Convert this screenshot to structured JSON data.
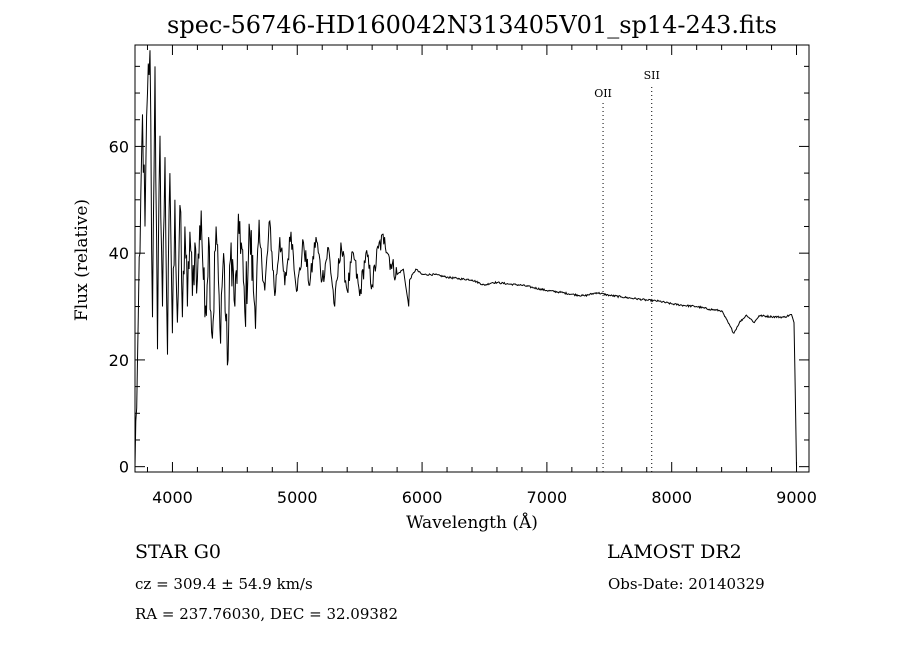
{
  "chart_data": {
    "type": "line",
    "title": "spec-56746-HD160042N313405V01_sp14-243.fits",
    "xlabel": "Wavelength (Å)",
    "ylabel": "Flux (relative)",
    "xlim": [
      3700,
      9100
    ],
    "ylim": [
      -1,
      79
    ],
    "xticks": [
      4000,
      5000,
      6000,
      7000,
      8000,
      9000
    ],
    "yticks": [
      0,
      20,
      40,
      60
    ],
    "grid": false,
    "series": [
      {
        "x": [
          3700,
          3720,
          3740,
          3760,
          3780,
          3800,
          3820,
          3840,
          3860,
          3880,
          3900,
          3920,
          3940,
          3960,
          3980,
          4000,
          4020,
          4040,
          4060,
          4080,
          4100,
          4120,
          4140,
          4160,
          4180,
          4200,
          4230,
          4260,
          4290,
          4320,
          4350,
          4380,
          4410,
          4440,
          4470,
          4500,
          4540,
          4580,
          4620,
          4660,
          4700,
          4740,
          4780,
          4820,
          4860,
          4900,
          4950,
          5000,
          5050,
          5100,
          5150,
          5200,
          5250,
          5300,
          5350,
          5400,
          5450,
          5500,
          5550,
          5600,
          5650,
          5700,
          5750,
          5800,
          5850,
          5893,
          5900,
          5950,
          6000,
          6100,
          6200,
          6300,
          6400,
          6500,
          6563,
          6600,
          6700,
          6800,
          6900,
          7000,
          7100,
          7200,
          7300,
          7400,
          7500,
          7600,
          7700,
          7800,
          7900,
          8000,
          8100,
          8200,
          8300,
          8400,
          8498,
          8542,
          8600,
          8662,
          8700,
          8800,
          8900,
          8960,
          8980,
          9000
        ],
        "y": [
          0,
          20,
          40,
          66,
          45,
          70,
          78,
          28,
          75,
          22,
          62,
          30,
          58,
          21,
          55,
          25,
          50,
          27,
          49,
          28,
          45,
          30,
          44,
          32,
          42,
          35,
          48,
          28,
          43,
          24,
          45,
          26,
          40,
          19,
          42,
          30,
          46,
          29,
          44,
          30,
          42,
          33,
          46,
          32,
          43,
          34,
          44,
          33,
          42,
          34,
          43,
          35,
          41,
          30,
          42,
          33,
          40,
          32,
          40,
          34,
          41,
          43,
          38,
          36,
          37,
          30,
          35,
          37,
          36,
          36,
          35.5,
          35.2,
          35,
          34,
          34.5,
          34.5,
          34.2,
          34,
          33.5,
          33,
          32.7,
          32.3,
          32,
          32.6,
          32.1,
          31.8,
          31.5,
          31.2,
          31,
          30.5,
          30.2,
          30,
          29.5,
          29.2,
          25,
          27,
          28.4,
          27,
          28.3,
          28.1,
          28,
          28.5,
          27,
          0
        ]
      }
    ],
    "annotations": [
      {
        "label": "OII",
        "x": 7450
      },
      {
        "label": "SII",
        "x": 7840
      }
    ]
  },
  "info": {
    "object": "STAR    G0",
    "survey": "LAMOST DR2",
    "cz": "cz = 309.4 ± 54.9 km/s",
    "obs_date": "Obs-Date: 20140329",
    "coords": "RA = 237.76030, DEC =  32.09382"
  }
}
